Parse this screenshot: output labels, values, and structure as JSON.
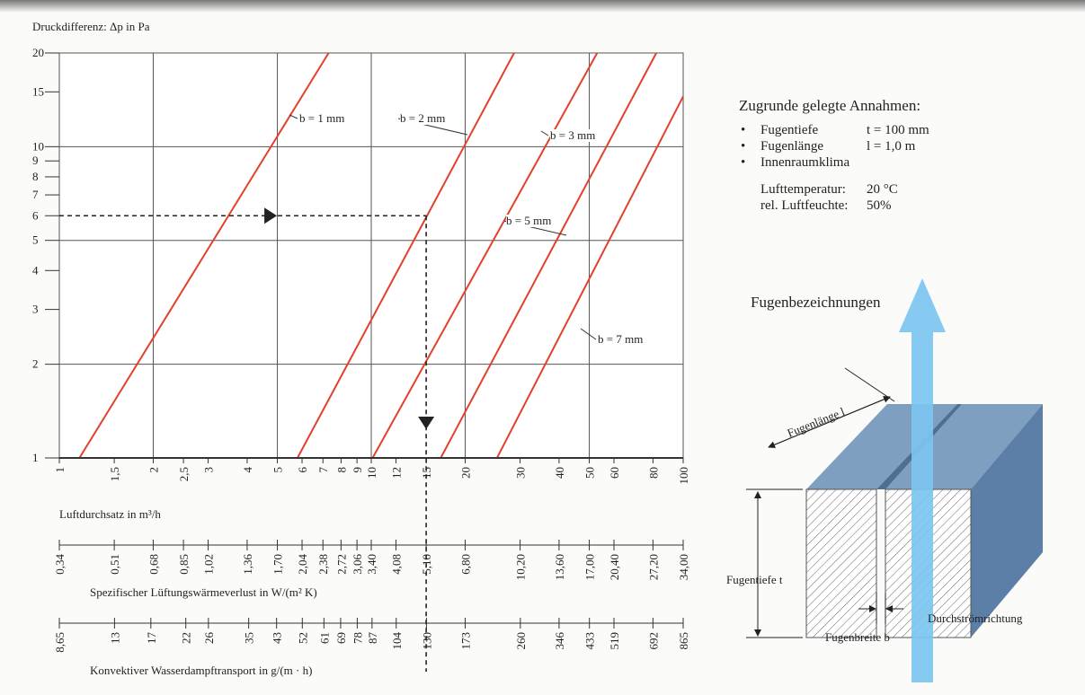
{
  "chart_data": {
    "type": "line",
    "scale": "log",
    "y_label": "Druckdifferenz: Δp in Pa",
    "x_label": "Luftdurchsatz in m³/h",
    "xlim": [
      1,
      100
    ],
    "ylim": [
      1,
      20
    ],
    "xticks": [
      1,
      {
        "value": 1.5,
        "label": "1,5"
      },
      2,
      {
        "value": 2.5,
        "label": "2,5"
      },
      3,
      4,
      5,
      6,
      7,
      8,
      9,
      10,
      12,
      15,
      20,
      30,
      40,
      50,
      60,
      80,
      100
    ],
    "yticks": [
      1,
      2,
      3,
      4,
      5,
      6,
      7,
      8,
      9,
      10,
      15,
      20
    ],
    "xgrid": [
      2,
      5,
      10,
      20,
      50
    ],
    "ygrid": [
      2,
      5,
      10
    ],
    "series": [
      {
        "name": "b = 1 mm",
        "color": "#e2402c",
        "x": [
          1.16,
          7.3
        ],
        "values": [
          1,
          20
        ]
      },
      {
        "name": "b = 2 mm",
        "color": "#e2402c",
        "x": [
          5.8,
          28.7
        ],
        "values": [
          1,
          20
        ]
      },
      {
        "name": "b = 3 mm",
        "color": "#e2402c",
        "x": [
          10.1,
          53
        ],
        "values": [
          1,
          20
        ]
      },
      {
        "name": "b = 5 mm",
        "color": "#e2402c",
        "x": [
          16.7,
          82
        ],
        "values": [
          1,
          20
        ]
      },
      {
        "name": "b = 7 mm",
        "color": "#e2402c",
        "x": [
          25.3,
          100
        ],
        "values": [
          1,
          14.5
        ]
      }
    ],
    "example": {
      "x": 15,
      "y": 6
    },
    "secondary_axes": [
      {
        "label": "Spezifischer Lüftungswärmeverlust in W/(m² K)",
        "lim": [
          0.34,
          34
        ],
        "ticks": [
          {
            "value": 0.34,
            "label": "0,34"
          },
          {
            "value": 0.51,
            "label": "0,51"
          },
          {
            "value": 0.68,
            "label": "0,68"
          },
          {
            "value": 0.85,
            "label": "0,85"
          },
          {
            "value": 1.02,
            "label": "1,02"
          },
          {
            "value": 1.36,
            "label": "1,36"
          },
          {
            "value": 1.7,
            "label": "1,70"
          },
          {
            "value": 2.04,
            "label": "2,04"
          },
          {
            "value": 2.38,
            "label": "2,38"
          },
          {
            "value": 2.72,
            "label": "2,72"
          },
          {
            "value": 3.06,
            "label": "3,06"
          },
          {
            "value": 3.4,
            "label": "3,40"
          },
          {
            "value": 4.08,
            "label": "4,08"
          },
          {
            "value": 5.1,
            "label": "5,10"
          },
          {
            "value": 6.8,
            "label": "6,80"
          },
          {
            "value": 10.2,
            "label": "10,20"
          },
          {
            "value": 13.6,
            "label": "13,60"
          },
          {
            "value": 17,
            "label": "17,00"
          },
          {
            "value": 20.4,
            "label": "20,40"
          },
          {
            "value": 27.2,
            "label": "27,20"
          },
          {
            "value": 34,
            "label": "34,00"
          }
        ]
      },
      {
        "label": "Konvektiver Wasserdampftransport in g/(m · h)",
        "lim": [
          8.65,
          865
        ],
        "ticks": [
          {
            "value": 8.65,
            "label": "8,65"
          },
          13,
          17,
          22,
          26,
          35,
          43,
          52,
          61,
          69,
          78,
          87,
          104,
          130,
          173,
          260,
          346,
          433,
          519,
          692,
          865
        ]
      }
    ]
  },
  "assumptions": {
    "title": "Zugrunde gelegte Annahmen:",
    "items": [
      [
        "Fugentiefe",
        "t = 100 mm"
      ],
      [
        "Fugenlänge",
        "l = 1,0 m"
      ],
      [
        "Innenraumklima"
      ]
    ],
    "climate": [
      [
        "Lufttemperatur:",
        "20 °C"
      ],
      [
        "rel. Luftfeuchte:",
        "50%"
      ]
    ]
  },
  "diagram": {
    "title": "Fugenbezeichnungen",
    "length": "Fugenlänge l",
    "depth": "Fugentiefe t",
    "width": "Fugenbreite b",
    "flow": "Durchströmrichtung"
  }
}
